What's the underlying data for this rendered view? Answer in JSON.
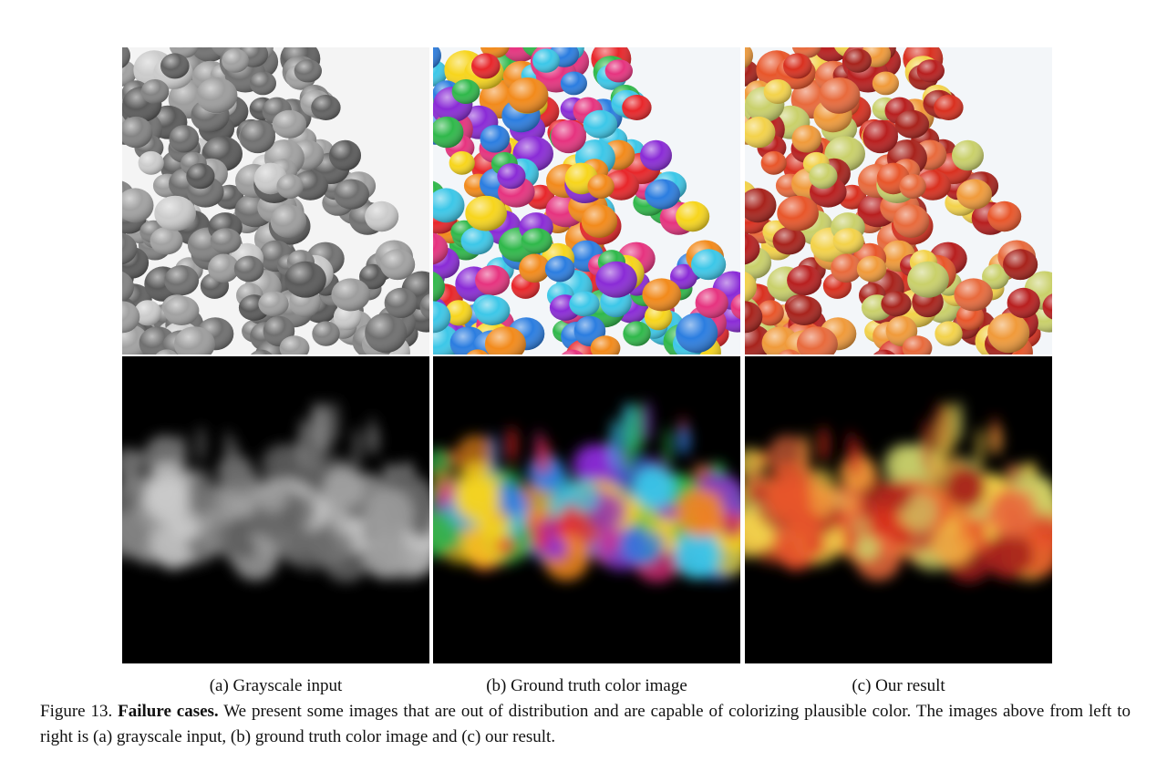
{
  "figure": {
    "panels": [
      {
        "row": "balloons",
        "col": "grayscale",
        "mode": "gray"
      },
      {
        "row": "balloons",
        "col": "ground-truth",
        "mode": "color"
      },
      {
        "row": "balloons",
        "col": "result",
        "mode": "warm"
      },
      {
        "row": "powder",
        "col": "grayscale",
        "mode": "gray"
      },
      {
        "row": "powder",
        "col": "ground-truth",
        "mode": "color"
      },
      {
        "row": "powder",
        "col": "result",
        "mode": "warm"
      }
    ],
    "subcaptions": {
      "a": "(a) Grayscale input",
      "b": "(b) Ground truth color image",
      "c": "(c) Our result"
    },
    "caption": {
      "prefix": "Figure 13.",
      "title": "Failure cases.",
      "body": "We present some images that are out of distribution and are capable of colorizing plausible color. The images above from left to right is (a) grayscale input, (b) ground truth color image and (c) our result."
    }
  },
  "colors": {
    "background": "#ffffff",
    "panel_dark": "#000000",
    "truth_palette": [
      "#e8262a",
      "#f7d51c",
      "#2b7de0",
      "#2fb84a",
      "#e6337f",
      "#8a2bd6",
      "#f28a1b",
      "#3cc7e8"
    ],
    "result_palette": [
      "#d9301f",
      "#e8562a",
      "#f09a3a",
      "#f3d24a",
      "#b81f1f",
      "#c9d06a",
      "#e86a3c",
      "#a8231c"
    ]
  }
}
